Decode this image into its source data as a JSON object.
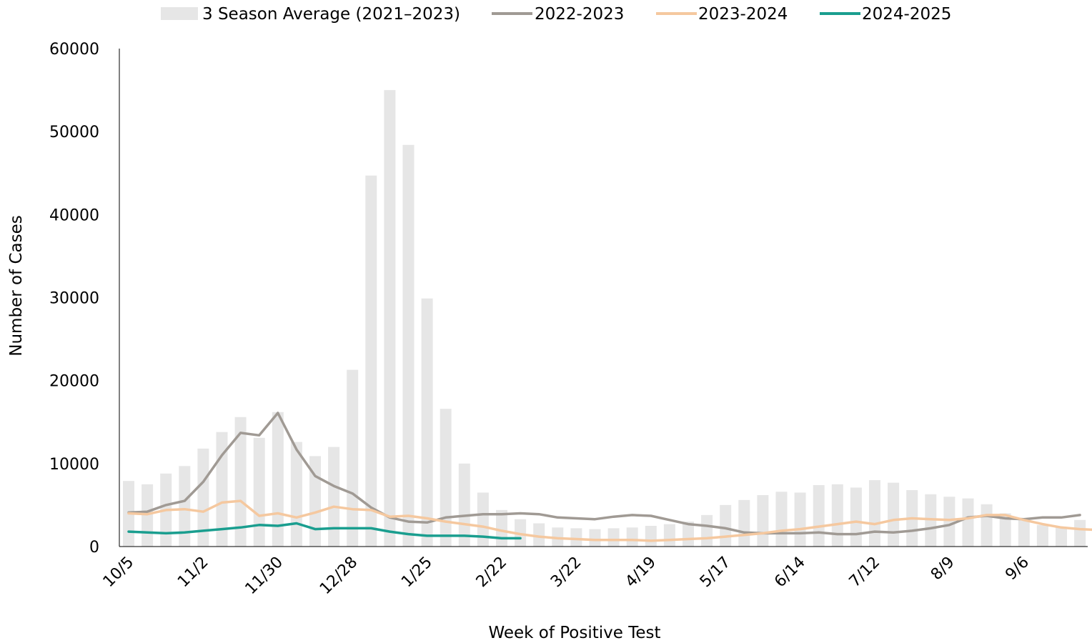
{
  "chart_data": {
    "type": "bar",
    "xlabel": "Week of Positive Test",
    "ylabel": "Number of Cases",
    "ylim": [
      0,
      60000
    ],
    "yticks": [
      "0",
      "10000",
      "20000",
      "30000",
      "40000",
      "50000",
      "60000"
    ],
    "xtick_labels": [
      "10/5",
      "11/2",
      "11/30",
      "12/28",
      "1/25",
      "2/22",
      "3/22",
      "4/19",
      "5/17",
      "6/14",
      "7/12",
      "8/9",
      "9/6"
    ],
    "grid": false,
    "legend_position": "top",
    "bar_series": {
      "name": "3 Season Average (2021–2023)",
      "color": "#e6e6e6",
      "values": [
        7900,
        7500,
        8800,
        9700,
        11800,
        13800,
        15600,
        13100,
        16200,
        12600,
        10900,
        12000,
        21300,
        44700,
        55000,
        48400,
        29900,
        16600,
        10000,
        6500,
        4400,
        3300,
        2800,
        2300,
        2200,
        2100,
        2200,
        2300,
        2500,
        2700,
        3000,
        3800,
        5000,
        5600,
        6200,
        6600,
        6500,
        7400,
        7500,
        7100,
        8000,
        7700,
        6800,
        6300,
        6000,
        5800,
        5100,
        4000,
        3200,
        2600,
        2300,
        3200
      ]
    },
    "series": [
      {
        "name": "2022-2023",
        "color": "#a09a94",
        "values": [
          4100,
          4200,
          5000,
          5500,
          7800,
          11000,
          13700,
          13400,
          16100,
          11700,
          8500,
          7300,
          6400,
          4700,
          3500,
          3000,
          2900,
          3500,
          3700,
          3900,
          3900,
          4000,
          3900,
          3500,
          3400,
          3300,
          3600,
          3800,
          3700,
          3200,
          2700,
          2500,
          2200,
          1700,
          1600,
          1600,
          1600,
          1700,
          1500,
          1500,
          1800,
          1700,
          1900,
          2200,
          2600,
          3500,
          3700,
          3400,
          3300,
          3500,
          3500,
          3800
        ]
      },
      {
        "name": "2023-2024",
        "color": "#f5c89f",
        "values": [
          4000,
          3900,
          4400,
          4500,
          4200,
          5300,
          5500,
          3700,
          4000,
          3500,
          4100,
          4800,
          4500,
          4400,
          3600,
          3700,
          3400,
          3000,
          2700,
          2400,
          1900,
          1500,
          1200,
          1000,
          900,
          800,
          800,
          800,
          700,
          800,
          900,
          1000,
          1200,
          1400,
          1600,
          1900,
          2100,
          2400,
          2700,
          3000,
          2700,
          3200,
          3400,
          3300,
          3200,
          3400,
          3800,
          3800,
          3200,
          2700,
          2300,
          2100,
          2000
        ]
      },
      {
        "name": "2024-2025",
        "color": "#1a9e8f",
        "values": [
          1800,
          1700,
          1600,
          1700,
          1900,
          2100,
          2300,
          2600,
          2500,
          2800,
          2100,
          2200,
          2200,
          2200,
          1800,
          1500,
          1300,
          1300,
          1300,
          1200,
          1000,
          1000
        ]
      }
    ]
  }
}
